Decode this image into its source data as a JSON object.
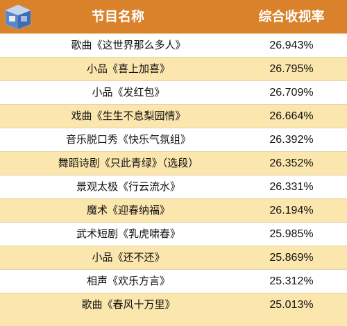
{
  "header": {
    "program_name_label": "节目名称",
    "rating_label": "综合收视率",
    "logo_icon": "tv-box-logo-icon",
    "accent_color": "#d9822b",
    "stripe_color": "#fbe6ad"
  },
  "rows": [
    {
      "name": "歌曲《这世界那么多人》",
      "rating": "26.943%"
    },
    {
      "name": "小品《喜上加喜》",
      "rating": "26.795%"
    },
    {
      "name": "小品《发红包》",
      "rating": "26.709%"
    },
    {
      "name": "戏曲《生生不息梨园情》",
      "rating": "26.664%"
    },
    {
      "name": "音乐脱口秀《快乐气氛组》",
      "rating": "26.392%"
    },
    {
      "name": "舞蹈诗剧《只此青绿》（选段）",
      "rating": "26.352%"
    },
    {
      "name": "景观太极《行云流水》",
      "rating": "26.331%"
    },
    {
      "name": "魔术《迎春纳福》",
      "rating": "26.194%"
    },
    {
      "name": "武术短剧《乳虎啸春》",
      "rating": "25.985%"
    },
    {
      "name": "小品《还不还》",
      "rating": "25.869%"
    },
    {
      "name": "相声《欢乐方言》",
      "rating": "25.312%"
    },
    {
      "name": "歌曲《春风十万里》",
      "rating": "25.013%"
    }
  ]
}
